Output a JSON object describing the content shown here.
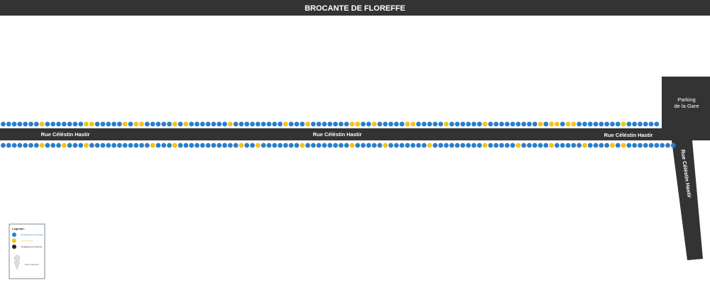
{
  "header": {
    "title": "BROCANTE DE FLOREFFE"
  },
  "streets": [
    "Rue Céléstin Hastir",
    "Rue Céléstin Hastir",
    "Rue Céléstin Hastir",
    "Rue Céléstin Hastir"
  ],
  "parking": {
    "label_lines": [
      "Parking",
      "de la Gare"
    ]
  },
  "legend": {
    "title": "Légende:",
    "items": [
      {
        "label": "Emplacement brocante",
        "color": "#2a7fc8"
      },
      {
        "label": "Non réservé",
        "color": "#f2c218"
      },
      {
        "label": "Emplacement réservé",
        "color": "#222222"
      }
    ],
    "marker": {
      "label": "Point d'accueil"
    }
  },
  "spots": {
    "north": [
      0,
      0,
      0,
      0,
      0,
      0,
      0,
      1,
      0,
      0,
      0,
      0,
      0,
      0,
      0,
      1,
      1,
      0,
      0,
      0,
      0,
      0,
      1,
      0,
      1,
      1,
      0,
      0,
      0,
      0,
      0,
      1,
      0,
      1,
      0,
      0,
      0,
      0,
      0,
      0,
      0,
      1,
      0,
      0,
      0,
      0,
      0,
      0,
      0,
      0,
      0,
      1,
      0,
      0,
      0,
      1,
      0,
      0,
      0,
      0,
      0,
      0,
      0,
      1,
      1,
      0,
      0,
      1,
      0,
      0,
      0,
      0,
      0,
      1,
      1,
      0,
      0,
      0,
      0,
      0,
      1,
      0,
      0,
      0,
      0,
      0,
      0,
      1,
      0,
      0,
      0,
      0,
      0,
      0,
      0,
      0,
      0,
      1,
      0,
      1,
      1,
      0,
      1,
      1,
      0,
      0,
      0,
      0,
      0,
      0,
      0,
      0,
      1,
      0,
      0,
      0,
      0,
      0,
      0
    ],
    "south": [
      0,
      0,
      0,
      0,
      0,
      0,
      0,
      1,
      0,
      0,
      0,
      1,
      0,
      0,
      0,
      1,
      0,
      0,
      0,
      0,
      0,
      0,
      0,
      0,
      0,
      0,
      0,
      1,
      0,
      0,
      0,
      1,
      0,
      0,
      0,
      0,
      0,
      0,
      0,
      0,
      0,
      0,
      0,
      1,
      0,
      0,
      1,
      0,
      0,
      0,
      0,
      0,
      0,
      0,
      1,
      0,
      0,
      0,
      0,
      0,
      0,
      0,
      0,
      1,
      0,
      0,
      0,
      0,
      0,
      1,
      0,
      0,
      0,
      0,
      0,
      0,
      0,
      1,
      0,
      0,
      0,
      0,
      0,
      0,
      0,
      0,
      0,
      1,
      0,
      0,
      0,
      0,
      0,
      1,
      0,
      0,
      0,
      0,
      0,
      1,
      0,
      0,
      0,
      0,
      0,
      1,
      0,
      0,
      0,
      0,
      1,
      0,
      1,
      0,
      0,
      0,
      0,
      0,
      0,
      0,
      0,
      0
    ]
  }
}
